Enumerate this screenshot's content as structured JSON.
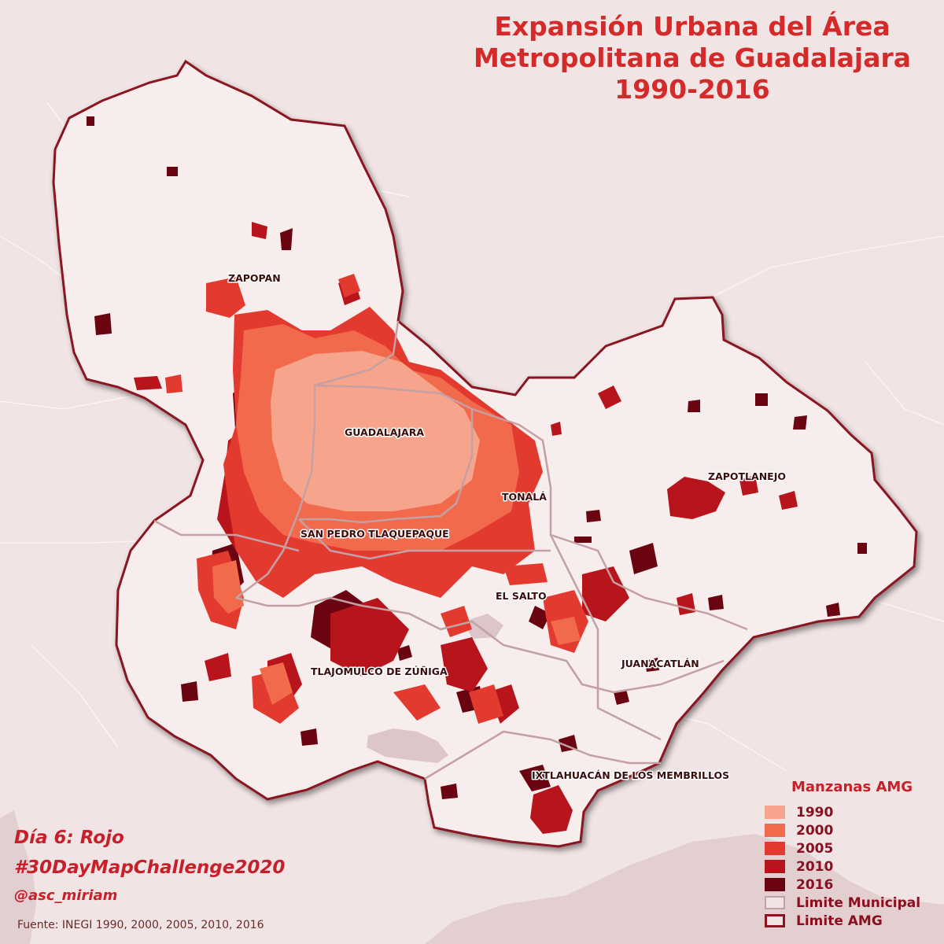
{
  "title": {
    "line1": "Expansión Urbana del Área",
    "line2": "Metropolitana de Guadalajara",
    "line3": "1990-2016"
  },
  "municipalities": {
    "zapopan": "ZAPOPAN",
    "guadalajara": "GUADALAJARA",
    "tonala": "TONALÁ",
    "zapotlanejo": "ZAPOTLANEJO",
    "tlaquepaque": "SAN PEDRO TLAQUEPAQUE",
    "el_salto": "EL SALTO",
    "tlajomulco": "TLAJOMULCO DE ZÚÑIGA",
    "juanacatlan": "JUANACATLÁN",
    "ixtlahuacan": "IXTLAHUACÁN DE LOS MEMBRILLOS"
  },
  "legend": {
    "title": "Manzanas AMG",
    "items": [
      {
        "label": "1990",
        "color": "#f6a48c"
      },
      {
        "label": "2000",
        "color": "#f26a4c"
      },
      {
        "label": "2005",
        "color": "#e33a30"
      },
      {
        "label": "2010",
        "color": "#b8141c"
      },
      {
        "label": "2016",
        "color": "#6a0410"
      }
    ],
    "municipal_limit": {
      "label": "Limite Municipal",
      "color": "#c4a0a4"
    },
    "amg_limit": {
      "label": "Limite AMG",
      "color": "#8a1420"
    }
  },
  "credits": {
    "day": "Día 6: Rojo",
    "hashtag": "#30DayMapChallenge2020",
    "handle": "@asc_miriam",
    "source": "Fuente: INEGI 1990, 2000, 2005, 2010, 2016"
  }
}
